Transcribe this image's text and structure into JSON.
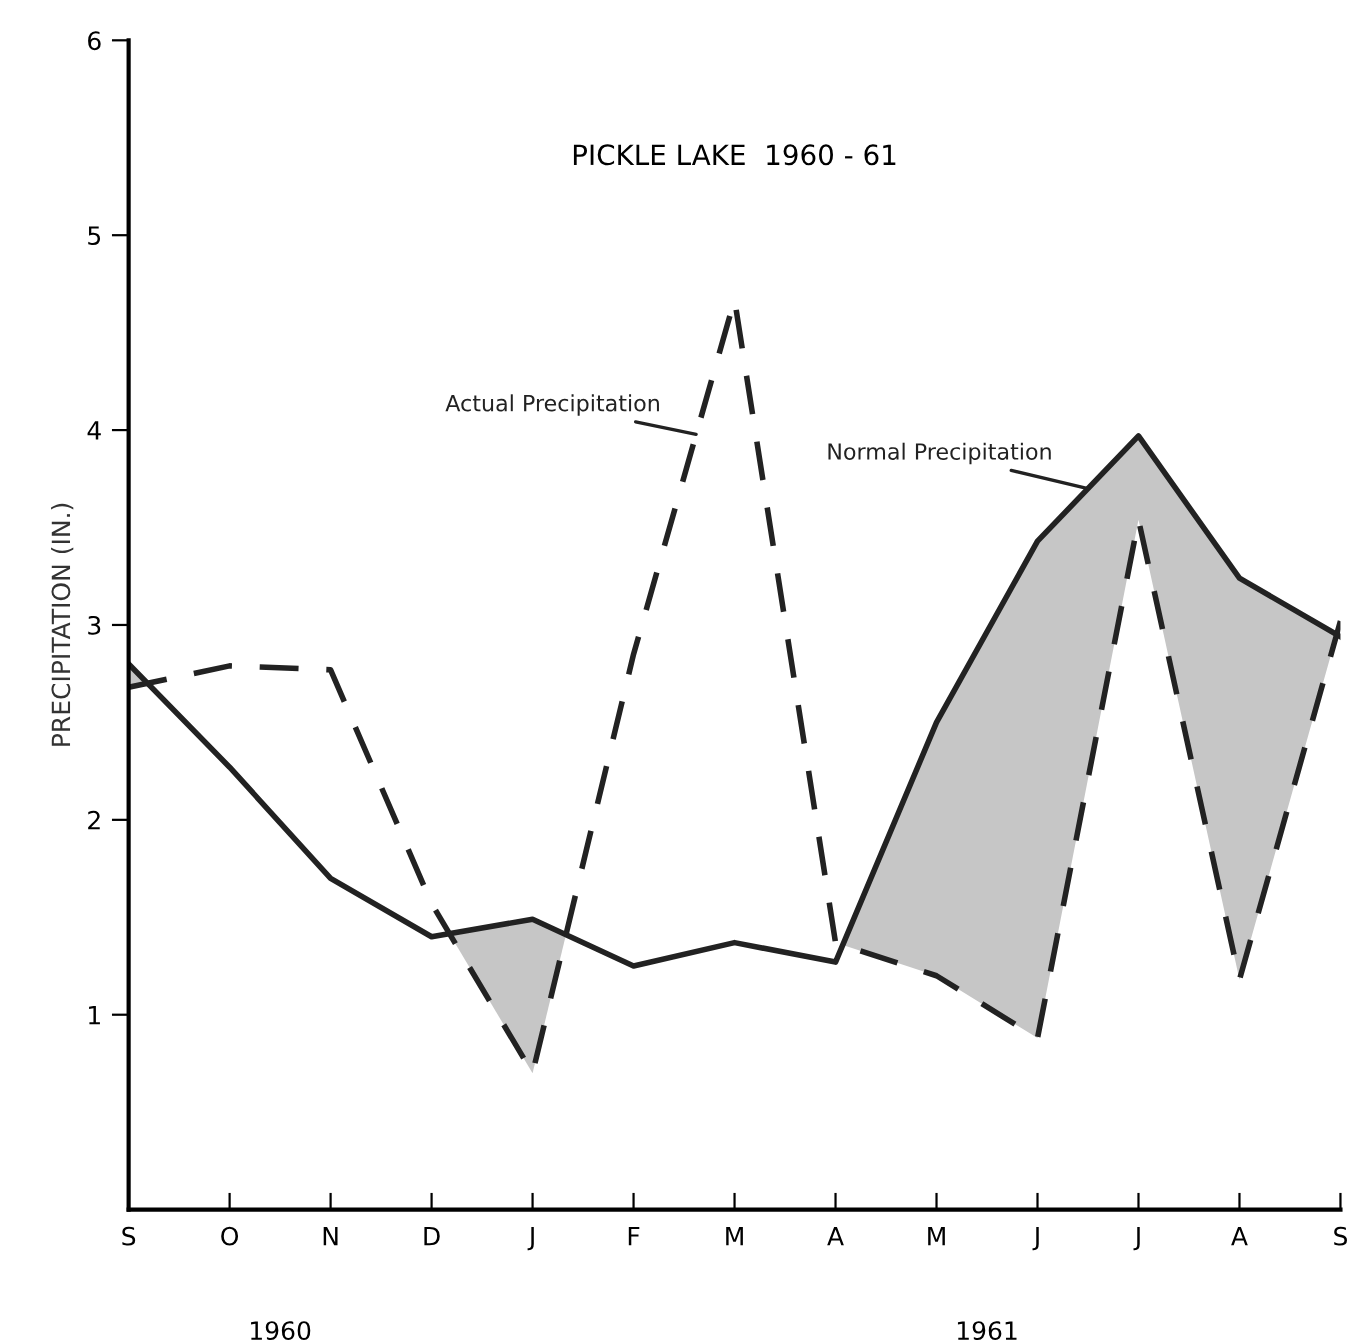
{
  "chart_data": {
    "type": "line",
    "title": "PICKLE LAKE  1960 - 61",
    "ylabel": "PRECIPITATION (IN.)",
    "categories": [
      "S",
      "O",
      "N",
      "D",
      "J",
      "F",
      "M",
      "A",
      "M",
      "J",
      "J",
      "A",
      "S"
    ],
    "series": [
      {
        "name": "Normal Precipitation",
        "color": "#222222",
        "line_style": "solid",
        "values": [
          2.8,
          2.27,
          1.7,
          1.4,
          1.49,
          1.25,
          1.37,
          1.27,
          2.5,
          3.43,
          3.97,
          3.24,
          2.94
        ]
      },
      {
        "name": "Actual Precipitation",
        "color": "#222222",
        "line_style": "dashed",
        "values": [
          2.68,
          2.79,
          2.77,
          1.57,
          0.7,
          2.85,
          4.67,
          1.37,
          1.2,
          0.88,
          3.54,
          1.18,
          3.02
        ]
      }
    ],
    "ylim": [
      0,
      6
    ],
    "yticks": [
      1,
      2,
      3,
      4,
      5,
      6
    ],
    "grid": false,
    "legend": false,
    "marker": "none",
    "annotations": [
      "1960",
      "1961"
    ]
  }
}
